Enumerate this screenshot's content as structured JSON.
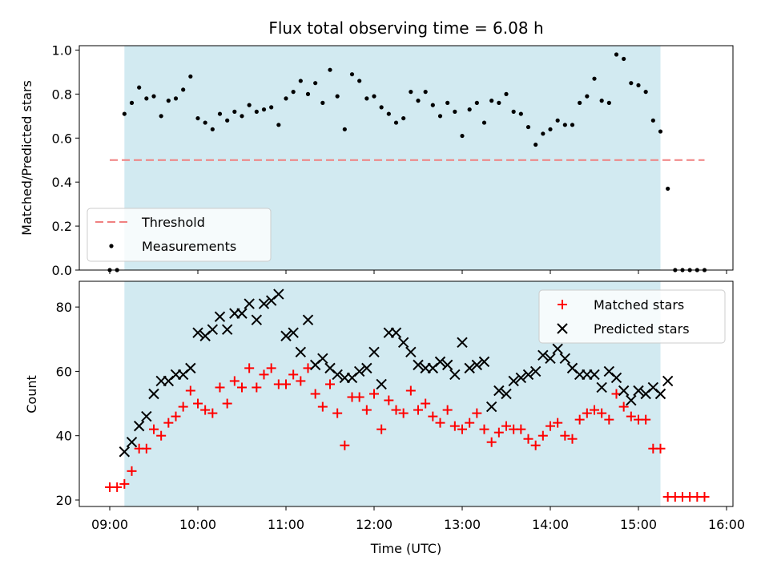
{
  "chart_data": [
    {
      "type": "scatter",
      "title": "Flux total observing time = 6.08 h",
      "xlabel": "",
      "ylabel": "Matched/Predicted stars",
      "ylim": [
        0,
        1.02
      ],
      "y_ticks": [
        "0.0",
        "0.2",
        "0.4",
        "0.6",
        "0.8",
        "1.0"
      ],
      "x_ticks": [
        "09:00",
        "10:00",
        "11:00",
        "12:00",
        "13:00",
        "14:00",
        "15:00",
        "16:00"
      ],
      "shaded_region": {
        "x_start": "09:10",
        "x_end": "15:15",
        "color": "#add8e6"
      },
      "threshold": {
        "label": "Threshold",
        "value": 0.5,
        "x_start": "09:00",
        "x_end": "15:45",
        "color": "#f08080"
      },
      "legend": {
        "placement": "lower-left",
        "entries": [
          "Threshold",
          "Measurements"
        ]
      },
      "series": [
        {
          "name": "Measurements",
          "color": "#000000",
          "x": [
            "09:00",
            "09:05",
            "09:10",
            "09:15",
            "09:20",
            "09:25",
            "09:30",
            "09:35",
            "09:40",
            "09:45",
            "09:50",
            "09:55",
            "10:00",
            "10:05",
            "10:10",
            "10:15",
            "10:20",
            "10:25",
            "10:30",
            "10:35",
            "10:40",
            "10:45",
            "10:50",
            "10:55",
            "11:00",
            "11:05",
            "11:10",
            "11:15",
            "11:20",
            "11:25",
            "11:30",
            "11:35",
            "11:40",
            "11:45",
            "11:50",
            "11:55",
            "12:00",
            "12:05",
            "12:10",
            "12:15",
            "12:20",
            "12:25",
            "12:30",
            "12:35",
            "12:40",
            "12:45",
            "12:50",
            "12:55",
            "13:00",
            "13:05",
            "13:10",
            "13:15",
            "13:20",
            "13:25",
            "13:30",
            "13:35",
            "13:40",
            "13:45",
            "13:50",
            "13:55",
            "14:00",
            "14:05",
            "14:10",
            "14:15",
            "14:20",
            "14:25",
            "14:30",
            "14:35",
            "14:40",
            "14:45",
            "14:50",
            "14:55",
            "15:00",
            "15:05",
            "15:10",
            "15:15",
            "15:20",
            "15:25",
            "15:30",
            "15:35",
            "15:40",
            "15:45"
          ],
          "y": [
            0.0,
            0.0,
            0.71,
            0.76,
            0.83,
            0.78,
            0.79,
            0.7,
            0.77,
            0.78,
            0.82,
            0.88,
            0.69,
            0.67,
            0.64,
            0.71,
            0.68,
            0.72,
            0.7,
            0.75,
            0.72,
            0.73,
            0.74,
            0.66,
            0.78,
            0.81,
            0.86,
            0.8,
            0.85,
            0.76,
            0.91,
            0.79,
            0.64,
            0.89,
            0.86,
            0.78,
            0.79,
            0.74,
            0.71,
            0.67,
            0.69,
            0.81,
            0.77,
            0.81,
            0.75,
            0.7,
            0.76,
            0.72,
            0.61,
            0.73,
            0.76,
            0.67,
            0.77,
            0.76,
            0.8,
            0.72,
            0.71,
            0.65,
            0.57,
            0.62,
            0.64,
            0.68,
            0.66,
            0.66,
            0.76,
            0.79,
            0.87,
            0.77,
            0.76,
            0.98,
            0.96,
            0.85,
            0.84,
            0.81,
            0.68,
            0.63,
            0.37,
            0.0,
            0.0,
            0.0,
            0.0,
            0.0
          ]
        }
      ]
    },
    {
      "type": "scatter",
      "title": "",
      "xlabel": "Time (UTC)",
      "ylabel": "Count",
      "ylim": [
        18,
        88
      ],
      "y_ticks": [
        "20",
        "40",
        "60",
        "80"
      ],
      "x_ticks": [
        "09:00",
        "10:00",
        "11:00",
        "12:00",
        "13:00",
        "14:00",
        "15:00",
        "16:00"
      ],
      "shaded_region": {
        "x_start": "09:10",
        "x_end": "15:15",
        "color": "#add8e6"
      },
      "legend": {
        "placement": "upper-right",
        "entries": [
          "Matched stars",
          "Predicted stars"
        ]
      },
      "series": [
        {
          "name": "Matched stars",
          "color": "#ff0000",
          "marker": "plus",
          "x": [
            "09:00",
            "09:05",
            "09:10",
            "09:15",
            "09:20",
            "09:25",
            "09:30",
            "09:35",
            "09:40",
            "09:45",
            "09:50",
            "09:55",
            "10:00",
            "10:05",
            "10:10",
            "10:15",
            "10:20",
            "10:25",
            "10:30",
            "10:35",
            "10:40",
            "10:45",
            "10:50",
            "10:55",
            "11:00",
            "11:05",
            "11:10",
            "11:15",
            "11:20",
            "11:25",
            "11:30",
            "11:35",
            "11:40",
            "11:45",
            "11:50",
            "11:55",
            "12:00",
            "12:05",
            "12:10",
            "12:15",
            "12:20",
            "12:25",
            "12:30",
            "12:35",
            "12:40",
            "12:45",
            "12:50",
            "12:55",
            "13:00",
            "13:05",
            "13:10",
            "13:15",
            "13:20",
            "13:25",
            "13:30",
            "13:35",
            "13:40",
            "13:45",
            "13:50",
            "13:55",
            "14:00",
            "14:05",
            "14:10",
            "14:15",
            "14:20",
            "14:25",
            "14:30",
            "14:35",
            "14:40",
            "14:45",
            "14:50",
            "14:55",
            "15:00",
            "15:05",
            "15:10",
            "15:15",
            "15:20",
            "15:25",
            "15:30",
            "15:35",
            "15:40",
            "15:45"
          ],
          "y": [
            24,
            24,
            25,
            29,
            36,
            36,
            42,
            40,
            44,
            46,
            49,
            54,
            50,
            48,
            47,
            55,
            50,
            57,
            55,
            61,
            55,
            59,
            61,
            56,
            56,
            59,
            57,
            61,
            53,
            49,
            56,
            47,
            37,
            52,
            52,
            48,
            53,
            42,
            51,
            48,
            47,
            54,
            48,
            50,
            46,
            44,
            48,
            43,
            42,
            44,
            47,
            42,
            38,
            41,
            43,
            42,
            42,
            39,
            37,
            40,
            43,
            44,
            40,
            39,
            45,
            47,
            48,
            47,
            45,
            53,
            49,
            46,
            45,
            45,
            36,
            36,
            21,
            21,
            21,
            21,
            21,
            21
          ]
        },
        {
          "name": "Predicted stars",
          "color": "#000000",
          "marker": "x",
          "x": [
            "09:10",
            "09:15",
            "09:20",
            "09:25",
            "09:30",
            "09:35",
            "09:40",
            "09:45",
            "09:50",
            "09:55",
            "10:00",
            "10:05",
            "10:10",
            "10:15",
            "10:20",
            "10:25",
            "10:30",
            "10:35",
            "10:40",
            "10:45",
            "10:50",
            "10:55",
            "11:00",
            "11:05",
            "11:10",
            "11:15",
            "11:20",
            "11:25",
            "11:30",
            "11:35",
            "11:40",
            "11:45",
            "11:50",
            "11:55",
            "12:00",
            "12:05",
            "12:10",
            "12:15",
            "12:20",
            "12:25",
            "12:30",
            "12:35",
            "12:40",
            "12:45",
            "12:50",
            "12:55",
            "13:00",
            "13:05",
            "13:10",
            "13:15",
            "13:20",
            "13:25",
            "13:30",
            "13:35",
            "13:40",
            "13:45",
            "13:50",
            "13:55",
            "14:00",
            "14:05",
            "14:10",
            "14:15",
            "14:20",
            "14:25",
            "14:30",
            "14:35",
            "14:40",
            "14:45",
            "14:50",
            "14:55",
            "15:00",
            "15:05",
            "15:10",
            "15:15",
            "15:20"
          ],
          "y": [
            35,
            38,
            43,
            46,
            53,
            57,
            57,
            59,
            59,
            61,
            72,
            71,
            73,
            77,
            73,
            78,
            78,
            81,
            76,
            81,
            82,
            84,
            71,
            72,
            66,
            76,
            62,
            64,
            61,
            59,
            58,
            58,
            60,
            61,
            66,
            56,
            72,
            72,
            69,
            66,
            62,
            61,
            61,
            63,
            62,
            59,
            69,
            61,
            62,
            63,
            49,
            54,
            53,
            57,
            58,
            59,
            60,
            65,
            64,
            67,
            64,
            61,
            59,
            59,
            59,
            55,
            60,
            58,
            54,
            51,
            54,
            53,
            55,
            53,
            57
          ]
        }
      ]
    }
  ]
}
